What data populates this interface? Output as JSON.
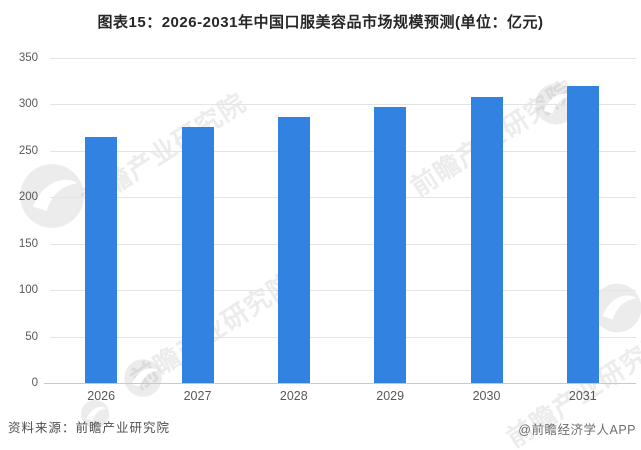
{
  "title": "图表15：2026-2031年中国口服美容品市场规模预测(单位：亿元)",
  "chart_data": {
    "type": "bar",
    "categories": [
      "2026",
      "2027",
      "2028",
      "2029",
      "2030",
      "2031"
    ],
    "values": [
      265,
      276,
      286,
      297,
      308,
      320
    ],
    "title": "图表15：2026-2031年中国口服美容品市场规模预测(单位：亿元)",
    "xlabel": "",
    "ylabel": "",
    "unit": "亿元",
    "ylim": [
      0,
      350
    ],
    "ytick_step": 50,
    "grid": true,
    "legend_position": "none"
  },
  "colors": {
    "bar": "#3282E2",
    "title_text": "#262626",
    "axis_text": "#595959",
    "gridline": "#e4e4e4",
    "axis_line": "#c9c9c9",
    "footer_text": "#4f4f4f",
    "credit_text": "#6e6e6e"
  },
  "watermark": {
    "text": "前瞻产业研究院",
    "logo": "qianzhan-crescent-logo"
  },
  "footer": {
    "source": "资料来源：前瞻产业研究院",
    "credit": "@前瞻经济学人APP"
  }
}
